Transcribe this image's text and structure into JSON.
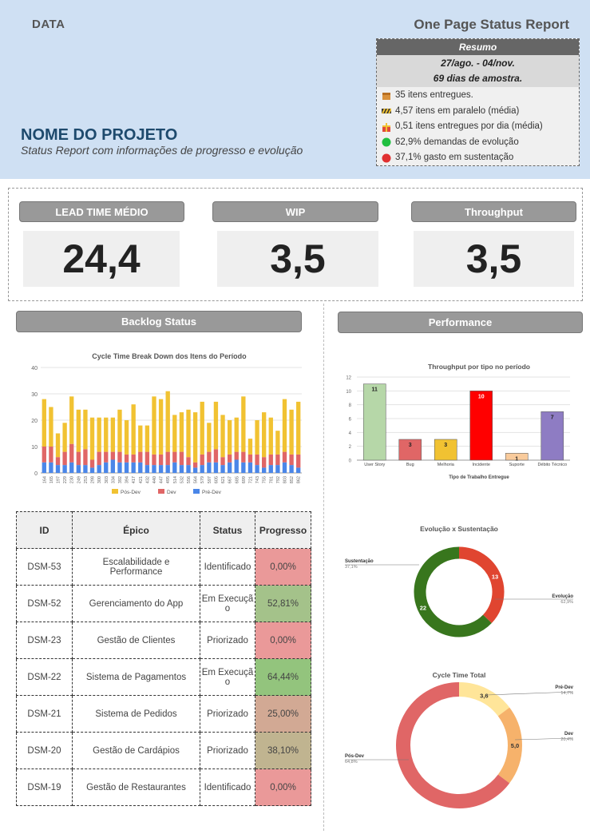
{
  "header": {
    "data_label": "DATA",
    "report_title": "One Page Status Report",
    "project_name": "NOME DO PROJETO",
    "project_subtitle": "Status Report com informações de progresso e evolução"
  },
  "resumo": {
    "title": "Resumo",
    "period": "27/ago. - 04/nov.",
    "sample": "69 dias de amostra.",
    "items": [
      {
        "icon": "box-icon",
        "text": "35 itens entregues."
      },
      {
        "icon": "parallel-stripes-icon",
        "text": "4,57 itens em paralelo (média)"
      },
      {
        "icon": "gift-icon",
        "text": "0,51 itens entregues por dia (média)"
      },
      {
        "icon": "green-circle-icon",
        "color": "#1fbf3f",
        "text": "62,9% demandas de evolução"
      },
      {
        "icon": "red-circle-icon",
        "color": "#e03030",
        "text": "37,1% gasto em sustentação"
      }
    ]
  },
  "kpis": [
    {
      "label": "LEAD TIME MÉDIO",
      "value": "24,4"
    },
    {
      "label": "WIP",
      "value": "3,5"
    },
    {
      "label": "Throughput",
      "value": "3,5"
    }
  ],
  "sections": {
    "backlog": "Backlog Status",
    "performance": "Performance"
  },
  "table": {
    "headers": [
      "ID",
      "Épico",
      "Status",
      "Progresso"
    ],
    "rows": [
      {
        "id": "DSM-53",
        "epic": "Escalabilidade e Performance",
        "status": "Identificado",
        "progress": "0,00%",
        "color": "#ea9999"
      },
      {
        "id": "DSM-52",
        "epic": "Gerenciamento do App",
        "status": "Em Execução",
        "progress": "52,81%",
        "color": "#a4c28a"
      },
      {
        "id": "DSM-23",
        "epic": "Gestão de Clientes",
        "status": "Priorizado",
        "progress": "0,00%",
        "color": "#ea9999"
      },
      {
        "id": "DSM-22",
        "epic": "Sistema de Pagamentos",
        "status": "Em Execução",
        "progress": "64,44%",
        "color": "#93c47d"
      },
      {
        "id": "DSM-21",
        "epic": "Sistema de Pedidos",
        "status": "Priorizado",
        "progress": "25,00%",
        "color": "#d2a994"
      },
      {
        "id": "DSM-20",
        "epic": "Gestão de Cardápios",
        "status": "Priorizado",
        "progress": "38,10%",
        "color": "#c0b490"
      },
      {
        "id": "DSM-19",
        "epic": "Gestão de Restaurantes",
        "status": "Identificado",
        "progress": "0,00%",
        "color": "#ea9999"
      }
    ]
  },
  "chart_data": [
    {
      "type": "bar",
      "stacked": true,
      "title": "Cycle Time Break Down dos Itens do Período",
      "ylim": [
        0,
        40
      ],
      "yticks": [
        0,
        10,
        20,
        30,
        40
      ],
      "categories": [
        "164",
        "165",
        "197",
        "229",
        "230",
        "249",
        "253",
        "298",
        "300",
        "303",
        "334",
        "392",
        "394",
        "417",
        "421",
        "432",
        "440",
        "447",
        "495",
        "514",
        "532",
        "556",
        "564",
        "579",
        "597",
        "605",
        "621",
        "667",
        "685",
        "699",
        "721",
        "743",
        "755",
        "781",
        "792",
        "803",
        "852",
        "862"
      ],
      "colors": {
        "Pós-Dev": "#f1c232",
        "Dev": "#e06666",
        "Pré-Dev": "#4a86e8"
      },
      "series": [
        {
          "name": "Pré-Dev",
          "values": [
            4,
            4,
            3,
            3,
            4,
            3,
            3,
            2,
            3,
            4,
            5,
            4,
            4,
            4,
            4,
            3,
            3,
            3,
            3,
            4,
            3,
            3,
            2,
            3,
            4,
            4,
            3,
            4,
            5,
            4,
            4,
            3,
            2,
            3,
            3,
            4,
            3,
            2
          ]
        },
        {
          "name": "Dev",
          "values": [
            6,
            6,
            3,
            5,
            7,
            5,
            6,
            3,
            5,
            4,
            3,
            4,
            3,
            3,
            4,
            5,
            4,
            4,
            5,
            4,
            5,
            3,
            2,
            4,
            4,
            5,
            3,
            3,
            3,
            4,
            3,
            4,
            4,
            4,
            4,
            4,
            4,
            5
          ]
        },
        {
          "name": "Pós-Dev",
          "values": [
            18,
            15,
            9,
            11,
            18,
            16,
            15,
            16,
            13,
            13,
            13,
            16,
            13,
            19,
            10,
            10,
            22,
            21,
            23,
            14,
            15,
            18,
            19,
            20,
            11,
            18,
            16,
            13,
            13,
            21,
            6,
            13,
            17,
            14,
            9,
            20,
            17,
            20
          ]
        }
      ],
      "legend": [
        "Pós-Dev",
        "Dev",
        "Pré-Dev"
      ]
    },
    {
      "type": "bar",
      "title": "Throughput por tipo no período",
      "xlabel": "Tipo de Trabalho Entregue",
      "ylim": [
        0,
        12
      ],
      "yticks": [
        0,
        2,
        4,
        6,
        8,
        10,
        12
      ],
      "categories": [
        "User Story",
        "Bug",
        "Melhoria",
        "Incidente",
        "Suporte",
        "Débito Técnico"
      ],
      "values": [
        11,
        3,
        3,
        10,
        1,
        7
      ],
      "colors": [
        "#b6d7a8",
        "#e06666",
        "#f1c232",
        "#ff0000",
        "#f9cb9c",
        "#8e7cc3"
      ]
    },
    {
      "type": "pie",
      "donut": true,
      "title": "Evolução x Sustentação",
      "slices": [
        {
          "label": "Sustentação",
          "value": 13,
          "percent": "37,1%",
          "color": "#e04530"
        },
        {
          "label": "Evolução",
          "value": 22,
          "percent": "62,9%",
          "color": "#38761d"
        }
      ]
    },
    {
      "type": "pie",
      "donut": true,
      "title": "Cycle Time Total",
      "slices": [
        {
          "label": "Pré-Dev",
          "value": 3.6,
          "display": "3,6",
          "percent": "14,7%",
          "color": "#ffe599"
        },
        {
          "label": "Dev",
          "value": 5.0,
          "display": "5,0",
          "percent": "20,4%",
          "color": "#f6b26b"
        },
        {
          "label": "Pós-Dev",
          "value": 15.8,
          "display": "",
          "percent": "64,8%",
          "color": "#e06666"
        }
      ]
    }
  ]
}
